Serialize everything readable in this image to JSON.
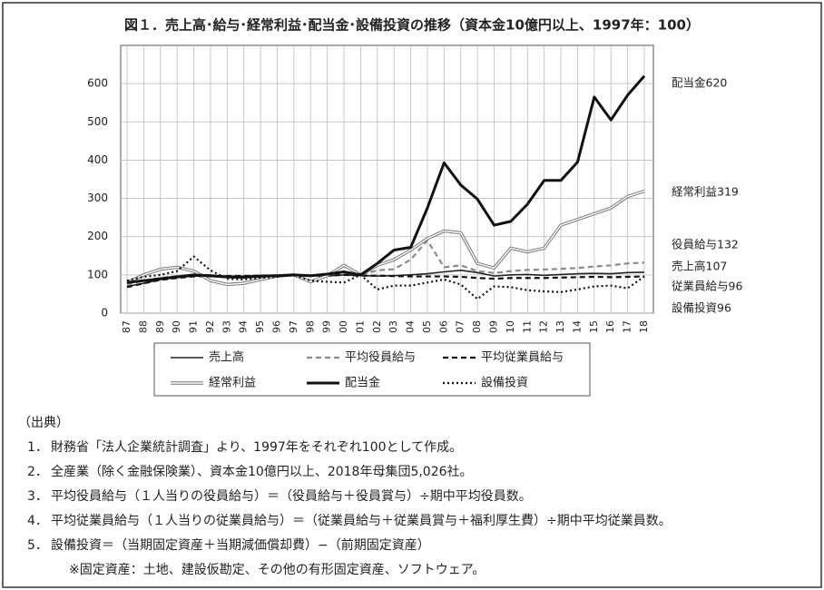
{
  "chart_data": {
    "type": "line",
    "title": "図１．売上高･給与･経常利益･配当金･設備投資の推移（資本金10億円以上、1997年：100）",
    "categories": [
      "87",
      "88",
      "89",
      "90",
      "91",
      "92",
      "93",
      "94",
      "95",
      "96",
      "97",
      "98",
      "99",
      "00",
      "01",
      "02",
      "03",
      "04",
      "05",
      "06",
      "07",
      "08",
      "09",
      "10",
      "11",
      "12",
      "13",
      "14",
      "15",
      "16",
      "17",
      "18"
    ],
    "ylim": [
      0,
      700
    ],
    "yticks": [
      0,
      100,
      200,
      300,
      400,
      500,
      600
    ],
    "grid": true,
    "series": [
      {
        "name": "売上高",
        "color": "#222222",
        "style": "solid",
        "values": [
          70,
          78,
          88,
          93,
          97,
          96,
          93,
          92,
          95,
          98,
          100,
          98,
          97,
          100,
          98,
          97,
          98,
          100,
          103,
          108,
          112,
          106,
          97,
          100,
          101,
          99,
          101,
          103,
          104,
          103,
          106,
          107
        ]
      },
      {
        "name": "平均役員給与",
        "color": "#8a8a8a",
        "style": "dashed",
        "values": [
          75,
          85,
          92,
          97,
          100,
          99,
          95,
          95,
          97,
          98,
          100,
          97,
          100,
          104,
          100,
          112,
          115,
          140,
          190,
          120,
          125,
          110,
          105,
          110,
          113,
          114,
          116,
          118,
          122,
          125,
          130,
          132
        ]
      },
      {
        "name": "平均従業員給与",
        "color": "#111111",
        "style": "dashed",
        "values": [
          68,
          78,
          87,
          92,
          96,
          97,
          97,
          97,
          98,
          99,
          100,
          98,
          98,
          100,
          98,
          98,
          97,
          96,
          96,
          96,
          95,
          92,
          90,
          92,
          92,
          92,
          93,
          94,
          95,
          94,
          95,
          96
        ]
      },
      {
        "name": "経常利益",
        "color": "#777777",
        "style": "double",
        "values": [
          80,
          100,
          115,
          120,
          110,
          85,
          75,
          78,
          88,
          97,
          100,
          82,
          98,
          125,
          100,
          125,
          140,
          165,
          195,
          215,
          210,
          130,
          118,
          170,
          160,
          170,
          230,
          245,
          260,
          275,
          305,
          319
        ]
      },
      {
        "name": "配当金",
        "color": "#111111",
        "style": "thick",
        "values": [
          80,
          85,
          90,
          95,
          100,
          98,
          95,
          95,
          97,
          98,
          100,
          98,
          102,
          108,
          100,
          130,
          165,
          172,
          275,
          393,
          335,
          298,
          230,
          240,
          285,
          347,
          347,
          395,
          565,
          505,
          570,
          620
        ]
      },
      {
        "name": "設備投資",
        "color": "#111111",
        "style": "dotted",
        "values": [
          85,
          95,
          100,
          110,
          148,
          112,
          90,
          88,
          92,
          95,
          100,
          85,
          82,
          80,
          100,
          62,
          72,
          72,
          80,
          88,
          75,
          37,
          70,
          68,
          60,
          57,
          55,
          62,
          70,
          72,
          65,
          96
        ]
      }
    ],
    "annotations": [
      "配当金620",
      "経常利益319",
      "役員給与132",
      "売上高107",
      "従業員給与96",
      "設備投資96"
    ]
  },
  "notes": {
    "heading": "（出典）",
    "items": [
      {
        "num": "1．",
        "text": "財務省「法人企業統計調査」より、1997年をそれぞれ100として作成。"
      },
      {
        "num": "2．",
        "text": "全産業（除く金融保険業）、資本金10億円以上、2018年母集団5,026社。"
      },
      {
        "num": "3．",
        "text": "平均役員給与（１人当りの役員給与）＝（役員給与＋役員賞与）÷期中平均役員数。"
      },
      {
        "num": "4．",
        "text": "平均従業員給与（１人当りの従業員給与）＝（従業員給与＋従業員賞与＋福利厚生費）÷期中平均従業員数。"
      },
      {
        "num": "5．",
        "text": "設備投資＝（当期固定資産＋当期減価償却費）−（前期固定資産）"
      }
    ],
    "footnote": "※固定資産：土地、建設仮勘定、その他の有形固定資産、ソフトウェア。"
  }
}
